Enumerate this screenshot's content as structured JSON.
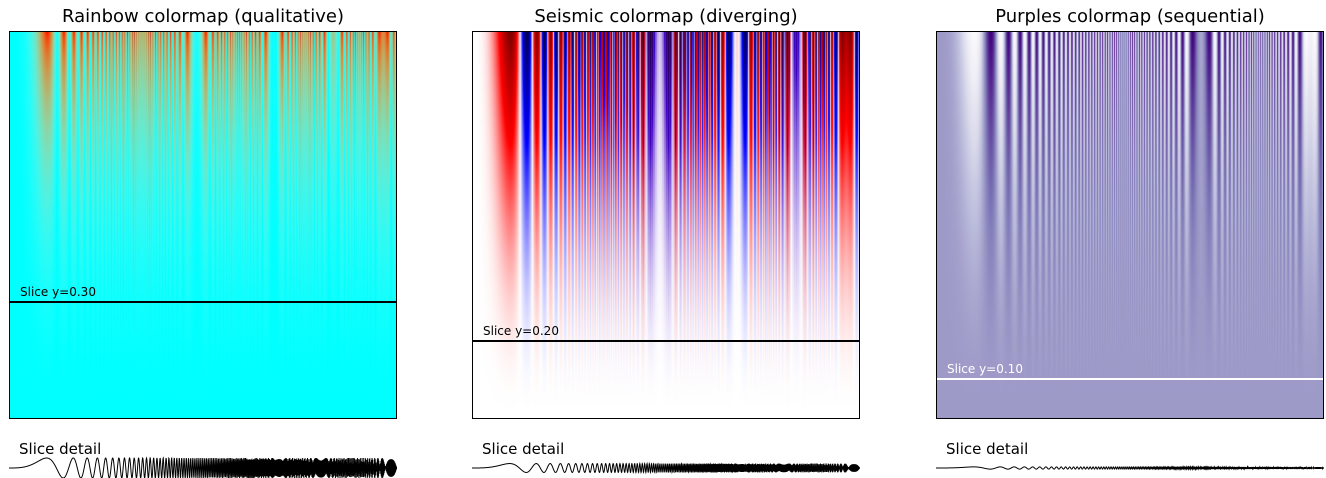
{
  "chart_data": [
    {
      "type": "heatmap",
      "title": "Rainbow colormap (qualitative)",
      "colormap": "rainbow",
      "xlim": [
        0,
        1
      ],
      "ylim": [
        0,
        1
      ],
      "slice": {
        "y": 0.3,
        "label": "Slice y=0.30",
        "line_color": "#000000",
        "label_color": "#000000"
      },
      "detail_label": "Slice detail"
    },
    {
      "type": "heatmap",
      "title": "Seismic colormap (diverging)",
      "colormap": "seismic",
      "xlim": [
        0,
        1
      ],
      "ylim": [
        0,
        1
      ],
      "slice": {
        "y": 0.2,
        "label": "Slice y=0.20",
        "line_color": "#000000",
        "label_color": "#000000"
      },
      "detail_label": "Slice detail"
    },
    {
      "type": "heatmap",
      "title": "Purples colormap (sequential)",
      "colormap": "purples",
      "xlim": [
        0,
        1
      ],
      "ylim": [
        0,
        1
      ],
      "slice": {
        "y": 0.1,
        "label": "Slice y=0.10",
        "line_color": "#ffffff",
        "label_color": "#ffffff"
      },
      "detail_label": "Slice detail"
    }
  ]
}
